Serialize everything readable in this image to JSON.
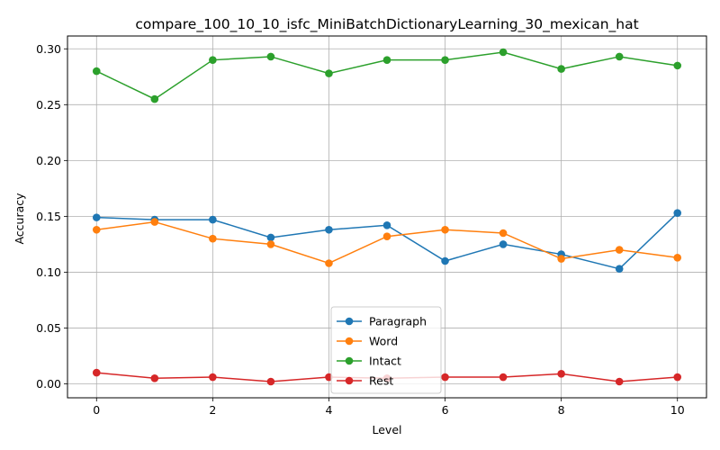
{
  "chart_data": {
    "type": "line",
    "title": "compare_100_10_10_isfc_MiniBatchDictionaryLearning_30_mexican_hat",
    "xlabel": "Level",
    "ylabel": "Accuracy",
    "x": [
      0,
      1,
      2,
      3,
      4,
      5,
      6,
      7,
      8,
      9,
      10
    ],
    "xlim": [
      -0.5,
      10.5
    ],
    "ylim": [
      -0.0125,
      0.3115
    ],
    "xticks": [
      0,
      2,
      4,
      6,
      8,
      10
    ],
    "xtick_labels": [
      "0",
      "2",
      "4",
      "6",
      "8",
      "10"
    ],
    "yticks": [
      0.0,
      0.05,
      0.1,
      0.15,
      0.2,
      0.25,
      0.3
    ],
    "ytick_labels": [
      "0.00",
      "0.05",
      "0.10",
      "0.15",
      "0.20",
      "0.25",
      "0.30"
    ],
    "grid": true,
    "legend_position": "lower center",
    "series": [
      {
        "name": "Paragraph",
        "color": "#1f77b4",
        "marker": "circle",
        "values": [
          0.149,
          0.147,
          0.147,
          0.131,
          0.138,
          0.142,
          0.11,
          0.125,
          0.116,
          0.103,
          0.153
        ]
      },
      {
        "name": "Word",
        "color": "#ff7f0e",
        "marker": "circle",
        "values": [
          0.138,
          0.145,
          0.13,
          0.125,
          0.108,
          0.132,
          0.138,
          0.135,
          0.112,
          0.12,
          0.113
        ]
      },
      {
        "name": "Intact",
        "color": "#2ca02c",
        "marker": "circle",
        "values": [
          0.28,
          0.255,
          0.29,
          0.293,
          0.278,
          0.29,
          0.29,
          0.297,
          0.282,
          0.293,
          0.285
        ]
      },
      {
        "name": "Rest",
        "color": "#d62728",
        "marker": "circle",
        "values": [
          0.01,
          0.005,
          0.006,
          0.002,
          0.006,
          0.005,
          0.006,
          0.006,
          0.009,
          0.002,
          0.006
        ]
      }
    ]
  }
}
